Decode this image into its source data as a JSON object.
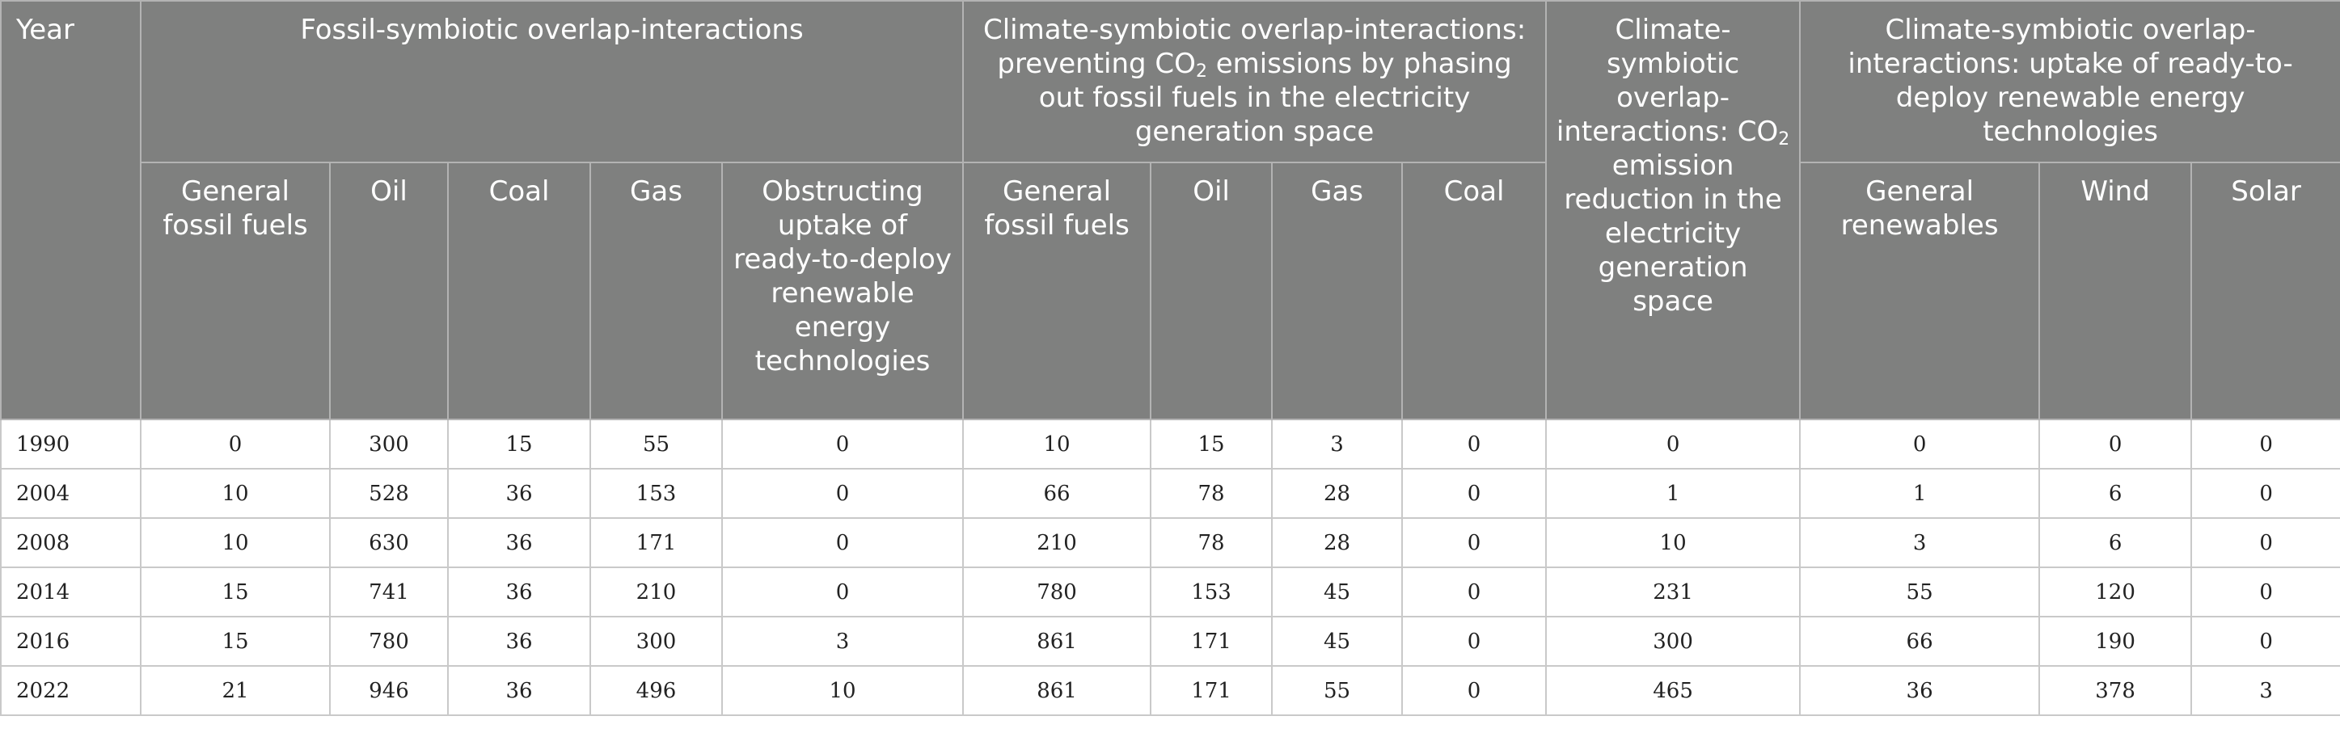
{
  "headers": {
    "year": "Year",
    "group_fossil": "Fossil-symbiotic overlap-interactions",
    "group_prevent_pre": "Climate-symbiotic overlap-interactions: preventing CO",
    "group_prevent_sub": "2",
    "group_prevent_post": " emissions by phasing out fossil fuels in the electricity generation space",
    "group_reduction_pre": "Climate-symbiotic overlap-interactions: CO",
    "group_reduction_sub": "2",
    "group_reduction_post": " emission reduction in the electricity generation space",
    "group_uptake": "Climate-symbiotic overlap-interactions: uptake of ready-to-deploy renewable energy technologies",
    "fossil_cols": [
      "General fossil fuels",
      "Oil",
      "Coal",
      "Gas",
      "Obstructing uptake of ready-to-deploy renewable energy technologies"
    ],
    "prevent_cols": [
      "General fossil fuels",
      "Oil",
      "Gas",
      "Coal"
    ],
    "uptake_cols": [
      "General renewables",
      "Wind",
      "Solar"
    ]
  },
  "rows": [
    {
      "year": "1990",
      "values": [
        "0",
        "300",
        "15",
        "55",
        "0",
        "10",
        "15",
        "3",
        "0",
        "0",
        "0",
        "0",
        "0"
      ]
    },
    {
      "year": "2004",
      "values": [
        "10",
        "528",
        "36",
        "153",
        "0",
        "66",
        "78",
        "28",
        "0",
        "1",
        "1",
        "6",
        "0"
      ]
    },
    {
      "year": "2008",
      "values": [
        "10",
        "630",
        "36",
        "171",
        "0",
        "210",
        "78",
        "28",
        "0",
        "10",
        "3",
        "6",
        "0"
      ]
    },
    {
      "year": "2014",
      "values": [
        "15",
        "741",
        "36",
        "210",
        "0",
        "780",
        "153",
        "45",
        "0",
        "231",
        "55",
        "120",
        "0"
      ]
    },
    {
      "year": "2016",
      "values": [
        "15",
        "780",
        "36",
        "300",
        "3",
        "861",
        "171",
        "45",
        "0",
        "300",
        "66",
        "190",
        "0"
      ]
    },
    {
      "year": "2022",
      "values": [
        "21",
        "946",
        "36",
        "496",
        "10",
        "861",
        "171",
        "55",
        "0",
        "465",
        "36",
        "378",
        "3"
      ]
    }
  ]
}
